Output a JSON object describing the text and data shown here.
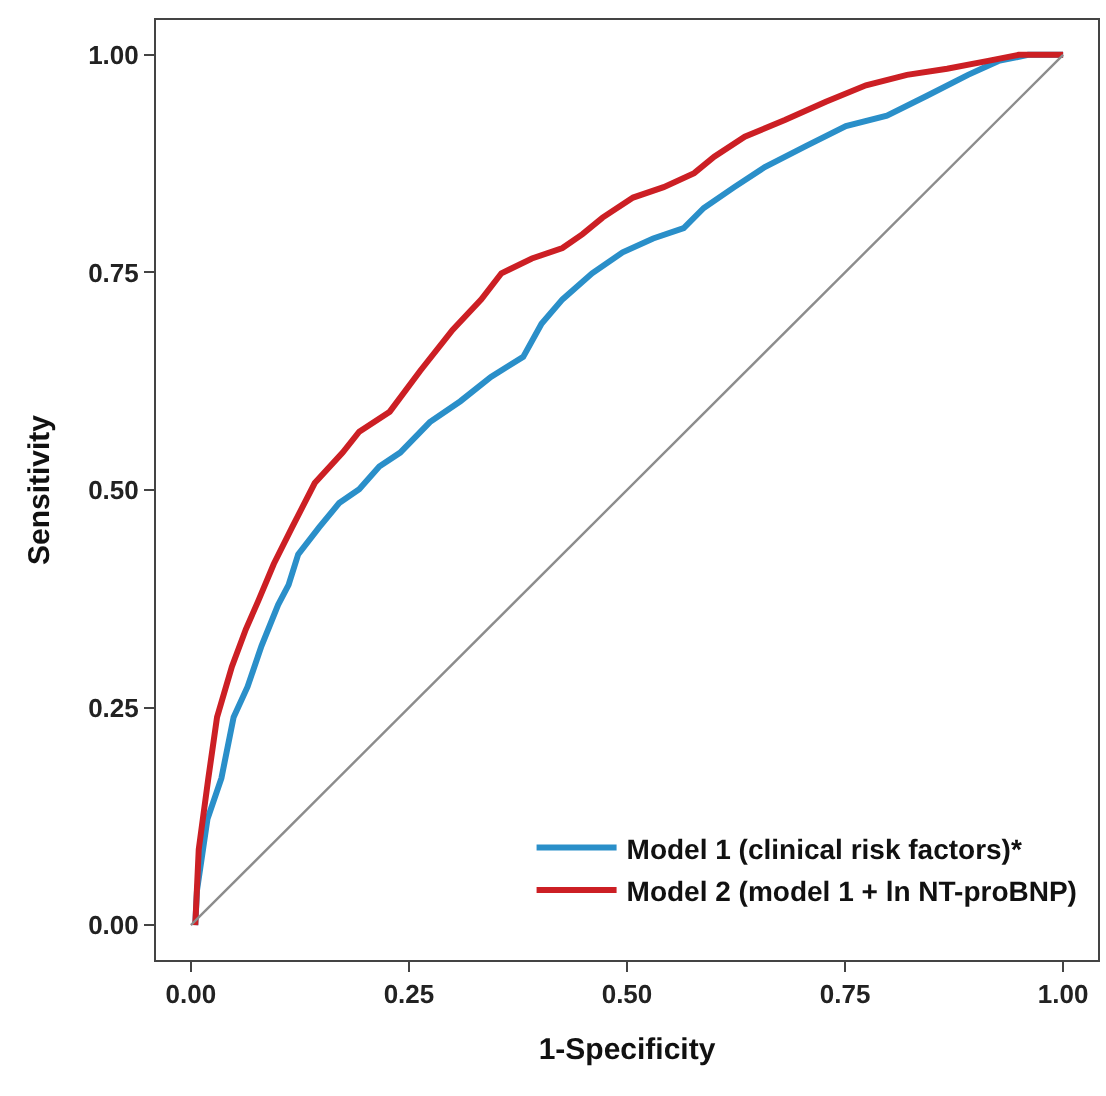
{
  "chart_data": {
    "type": "line",
    "xlabel": "1-Specificity",
    "ylabel": "Sensitivity",
    "xlim": [
      -0.04,
      1.04
    ],
    "ylim": [
      -0.04,
      1.04
    ],
    "xticks": [
      {
        "value": 0,
        "label": "0.00"
      },
      {
        "value": 0.25,
        "label": "0.25"
      },
      {
        "value": 0.5,
        "label": "0.50"
      },
      {
        "value": 0.75,
        "label": "0.75"
      },
      {
        "value": 1,
        "label": "1.00"
      }
    ],
    "yticks": [
      {
        "value": 0,
        "label": "0.00"
      },
      {
        "value": 0.25,
        "label": "0.25"
      },
      {
        "value": 0.5,
        "label": "0.50"
      },
      {
        "value": 0.75,
        "label": "0.75"
      },
      {
        "value": 1,
        "label": "1.00"
      }
    ],
    "legend": "bottom right",
    "marker": "none",
    "line_style": "solid",
    "series": [
      {
        "name": "Model 1 (clinical risk factors)*",
        "color": "#2a8fc9",
        "x": [
          0.005,
          0.007,
          0.019,
          0.035,
          0.049,
          0.065,
          0.081,
          0.1,
          0.112,
          0.123,
          0.147,
          0.17,
          0.193,
          0.216,
          0.24,
          0.274,
          0.309,
          0.344,
          0.381,
          0.402,
          0.426,
          0.46,
          0.495,
          0.53,
          0.565,
          0.588,
          0.623,
          0.658,
          0.705,
          0.751,
          0.798,
          0.844,
          0.891,
          0.926,
          0.96,
          1
        ],
        "values": [
          0,
          0.04,
          0.122,
          0.169,
          0.239,
          0.274,
          0.321,
          0.368,
          0.391,
          0.426,
          0.457,
          0.485,
          0.501,
          0.527,
          0.543,
          0.578,
          0.602,
          0.63,
          0.653,
          0.691,
          0.719,
          0.749,
          0.773,
          0.789,
          0.801,
          0.824,
          0.848,
          0.871,
          0.895,
          0.918,
          0.93,
          0.953,
          0.977,
          0.993,
          1,
          1
        ]
      },
      {
        "name": "Model 2 (model 1 + ln NT-proBNP)",
        "color": "#cc1f24",
        "x": [
          0.005,
          0.009,
          0.02,
          0.03,
          0.047,
          0.063,
          0.077,
          0.095,
          0.116,
          0.142,
          0.174,
          0.193,
          0.228,
          0.263,
          0.3,
          0.333,
          0.356,
          0.391,
          0.426,
          0.449,
          0.472,
          0.507,
          0.542,
          0.577,
          0.6,
          0.635,
          0.681,
          0.728,
          0.774,
          0.821,
          0.867,
          0.914,
          0.949,
          1
        ],
        "values": [
          0,
          0.087,
          0.169,
          0.239,
          0.297,
          0.34,
          0.372,
          0.415,
          0.457,
          0.508,
          0.543,
          0.567,
          0.59,
          0.637,
          0.684,
          0.719,
          0.749,
          0.766,
          0.778,
          0.794,
          0.813,
          0.836,
          0.848,
          0.864,
          0.883,
          0.906,
          0.925,
          0.946,
          0.965,
          0.977,
          0.984,
          0.993,
          1,
          1
        ]
      },
      {
        "color": "#8c8c8c",
        "x": [
          0,
          1
        ],
        "values": [
          0,
          1
        ]
      }
    ]
  }
}
